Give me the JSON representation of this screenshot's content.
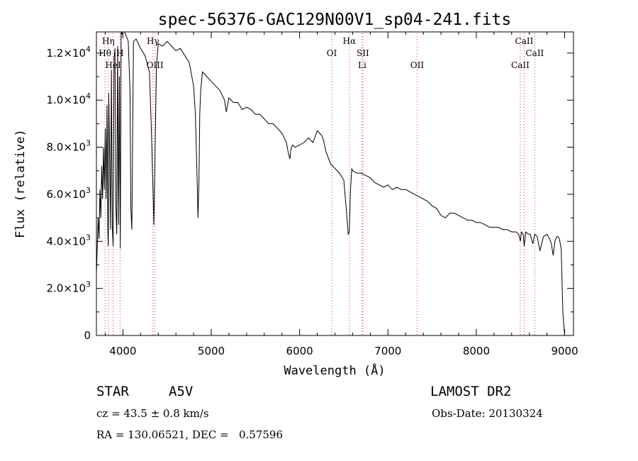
{
  "chart_data": {
    "type": "line",
    "title": "spec-56376-GAC129N00V1_sp04-241.fits",
    "xlabel": "Wavelength (Å)",
    "ylabel": "Flux (relative)",
    "xlim": [
      3700,
      9100
    ],
    "ylim": [
      0,
      12900
    ],
    "x_ticks": [
      4000,
      5000,
      6000,
      7000,
      8000,
      9000
    ],
    "x_tick_labels": [
      "4000",
      "5000",
      "6000",
      "7000",
      "8000",
      "9000"
    ],
    "y_ticks": [
      0,
      2000,
      4000,
      6000,
      8000,
      10000,
      12000
    ],
    "y_tick_labels": [
      {
        "mant": "0",
        "exp": ""
      },
      {
        "mant": "2.0×10",
        "exp": "3"
      },
      {
        "mant": "4.0×10",
        "exp": "3"
      },
      {
        "mant": "6.0×10",
        "exp": "3"
      },
      {
        "mant": "8.0×10",
        "exp": "3"
      },
      {
        "mant": "1.0×10",
        "exp": "4"
      },
      {
        "mant": "1.2×10",
        "exp": "4"
      }
    ],
    "grid": false,
    "series": [
      {
        "x": [
          3700,
          3710,
          3720,
          3730,
          3740,
          3750,
          3760,
          3770,
          3780,
          3790,
          3800,
          3810,
          3820,
          3830,
          3835,
          3840,
          3850,
          3860,
          3870,
          3880,
          3889,
          3900,
          3910,
          3920,
          3930,
          3940,
          3950,
          3960,
          3970,
          3980,
          3990,
          4000,
          4020,
          4040,
          4060,
          4080,
          4090,
          4101,
          4110,
          4120,
          4150,
          4200,
          4250,
          4300,
          4320,
          4340,
          4350,
          4360,
          4380,
          4400,
          4450,
          4500,
          4550,
          4600,
          4650,
          4700,
          4750,
          4800,
          4820,
          4840,
          4850,
          4861,
          4870,
          4880,
          4900,
          4950,
          5000,
          5050,
          5100,
          5150,
          5170,
          5200,
          5250,
          5300,
          5350,
          5400,
          5450,
          5500,
          5550,
          5600,
          5650,
          5700,
          5750,
          5800,
          5850,
          5870,
          5890,
          5900,
          5920,
          5950,
          6000,
          6050,
          6100,
          6150,
          6200,
          6250,
          6270,
          6300,
          6350,
          6400,
          6450,
          6500,
          6530,
          6550,
          6563,
          6575,
          6590,
          6600,
          6650,
          6700,
          6750,
          6800,
          6850,
          6900,
          6950,
          7000,
          7050,
          7100,
          7150,
          7200,
          7250,
          7300,
          7350,
          7400,
          7450,
          7500,
          7550,
          7600,
          7650,
          7700,
          7750,
          7800,
          7850,
          7900,
          7950,
          8000,
          8050,
          8100,
          8150,
          8200,
          8250,
          8300,
          8350,
          8400,
          8450,
          8480,
          8498,
          8510,
          8530,
          8542,
          8560,
          8590,
          8610,
          8640,
          8662,
          8690,
          8720,
          8760,
          8800,
          8830,
          8850,
          8870,
          8890,
          8910,
          8925,
          8940,
          8960,
          8980,
          9000
        ],
        "y": [
          2600,
          3800,
          5000,
          4100,
          6200,
          5000,
          7200,
          5800,
          8000,
          6200,
          8800,
          5800,
          9800,
          4300,
          3800,
          10300,
          7600,
          4500,
          11300,
          4600,
          3800,
          11800,
          12200,
          5500,
          4300,
          12300,
          4700,
          11000,
          3700,
          12900,
          12800,
          12900,
          12900,
          12700,
          12500,
          10400,
          5400,
          4500,
          8500,
          12500,
          12600,
          12200,
          11900,
          11200,
          9000,
          6200,
          4700,
          7000,
          11400,
          12400,
          12300,
          12500,
          12300,
          12100,
          12200,
          11900,
          11600,
          10600,
          9400,
          6600,
          5000,
          6600,
          9400,
          10400,
          11200,
          11000,
          10800,
          10600,
          10400,
          10000,
          9500,
          10100,
          9900,
          9900,
          9600,
          9700,
          9600,
          9400,
          9400,
          9200,
          9000,
          9000,
          8800,
          8600,
          8200,
          7800,
          7500,
          7900,
          8100,
          8000,
          8100,
          8200,
          8400,
          8200,
          8700,
          8500,
          8300,
          7800,
          7300,
          7100,
          6900,
          6600,
          5300,
          4300,
          4400,
          6100,
          7100,
          7000,
          6900,
          6900,
          6800,
          6700,
          6500,
          6400,
          6300,
          6400,
          6200,
          6300,
          6200,
          6200,
          6100,
          6000,
          5900,
          5800,
          5700,
          5500,
          5400,
          5100,
          5000,
          5200,
          5200,
          5100,
          5000,
          4900,
          4900,
          4800,
          4800,
          4700,
          4600,
          4600,
          4600,
          4500,
          4500,
          4400,
          4400,
          4300,
          4000,
          4400,
          4300,
          3800,
          4400,
          4300,
          4300,
          3900,
          4300,
          4200,
          3600,
          4200,
          4300,
          4100,
          3900,
          3400,
          4000,
          4200,
          4200,
          4100,
          3700,
          1000,
          0
        ]
      }
    ],
    "spectral_lines": [
      {
        "label": "Hη",
        "x": 3835,
        "row": 1
      },
      {
        "label": "Hθ",
        "x": 3797,
        "row": 2
      },
      {
        "label": "H",
        "x": 3968,
        "row": 2
      },
      {
        "label": "HeI",
        "x": 3889,
        "row": 3
      },
      {
        "label": "Hγ",
        "x": 4340,
        "row": 1
      },
      {
        "label": "OIII",
        "x": 4363,
        "row": 3
      },
      {
        "label": "Hα",
        "x": 6563,
        "row": 1
      },
      {
        "label": "OI",
        "x": 6364,
        "row": 2
      },
      {
        "label": "SII",
        "x": 6716,
        "row": 2
      },
      {
        "label": "Li",
        "x": 6708,
        "row": 3
      },
      {
        "label": "OII",
        "x": 7330,
        "row": 3
      },
      {
        "label": "CaII",
        "x": 8542,
        "row": 1
      },
      {
        "label": "CaII",
        "x": 8662,
        "row": 2
      },
      {
        "label": "CaII",
        "x": 8498,
        "row": 3
      }
    ]
  },
  "info": {
    "star_label": "STAR",
    "class_label": "A5V",
    "cz_line": "cz = 43.5 ± 0.8 km/s",
    "radec_line": "RA = 130.06521, DEC =   0.57596",
    "survey": "LAMOST DR2",
    "obs_date_line": "Obs-Date: 20130324"
  },
  "colors": {
    "line": "#000000",
    "marker_lines": "#e03030",
    "background": "#ffffff"
  }
}
